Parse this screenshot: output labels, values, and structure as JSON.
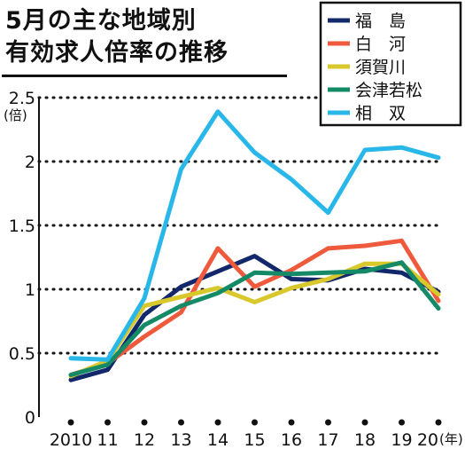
{
  "chart_data": {
    "type": "line",
    "title": [
      "5月の主な地域別",
      "有効求人倍率の推移"
    ],
    "y_unit": "(倍)",
    "x_unit": "(年)",
    "x": [
      2010,
      2011,
      2012,
      2013,
      2014,
      2015,
      2016,
      2017,
      2018,
      2019,
      2020
    ],
    "x_tick_labels": [
      "2010",
      "11",
      "12",
      "13",
      "14",
      "15",
      "16",
      "17",
      "18",
      "19",
      "20"
    ],
    "y_ticks": [
      "0",
      "0.5",
      "1",
      "1.5",
      "2",
      "2.5"
    ],
    "ylim": [
      0,
      2.5
    ],
    "grid": "horizontal dotted",
    "legend_position": "top-right",
    "series": [
      {
        "name": "福　島",
        "color": "#12286b",
        "values": [
          0.29,
          0.37,
          0.8,
          1.02,
          1.14,
          1.26,
          1.08,
          1.07,
          1.16,
          1.13,
          0.98
        ]
      },
      {
        "name": "白　河",
        "color": "#ef5a3c",
        "values": [
          0.33,
          0.42,
          0.63,
          0.82,
          1.32,
          1.02,
          1.15,
          1.32,
          1.34,
          1.38,
          0.91
        ]
      },
      {
        "name": "須賀川",
        "color": "#d9c82b",
        "values": [
          0.32,
          0.44,
          0.87,
          0.94,
          1.01,
          0.9,
          1.01,
          1.08,
          1.2,
          1.2,
          0.96
        ]
      },
      {
        "name": "会津若松",
        "color": "#158a67",
        "values": [
          0.33,
          0.41,
          0.72,
          0.87,
          0.97,
          1.13,
          1.12,
          1.13,
          1.14,
          1.21,
          0.85
        ]
      },
      {
        "name": "相　双",
        "color": "#29b7ea",
        "values": [
          0.46,
          0.45,
          0.93,
          1.94,
          2.39,
          2.07,
          1.86,
          1.6,
          2.09,
          2.11,
          2.03
        ]
      }
    ]
  }
}
